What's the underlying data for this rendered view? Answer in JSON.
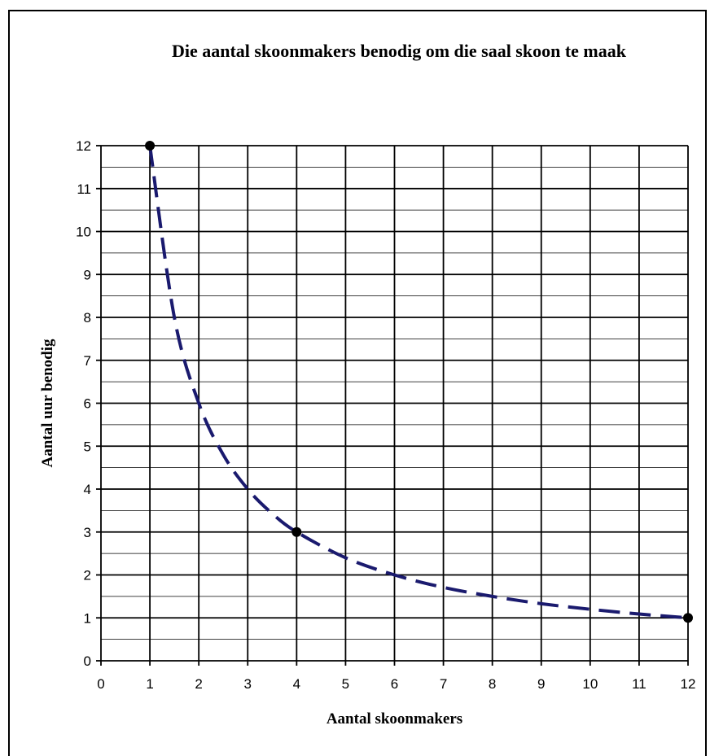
{
  "chart_data": {
    "type": "line",
    "title": "Die aantal skoonmakers benodig om die saal skoon te maak",
    "xlabel": "Aantal skoonmakers",
    "ylabel": "Aantal uur benodig",
    "xlim": [
      0,
      12
    ],
    "ylim": [
      0,
      12
    ],
    "x_ticks": [
      0,
      1,
      2,
      3,
      4,
      5,
      6,
      7,
      8,
      9,
      10,
      11,
      12
    ],
    "y_ticks": [
      0,
      1,
      2,
      3,
      4,
      5,
      6,
      7,
      8,
      9,
      10,
      11,
      12
    ],
    "grid": true,
    "curve": {
      "style": "dashed",
      "color": "#1a1a6e",
      "x": [
        1,
        1.5,
        2,
        2.5,
        3,
        3.5,
        4,
        5,
        6,
        7,
        8,
        9,
        10,
        11,
        12
      ],
      "y": [
        12,
        8,
        6,
        4.8,
        4,
        3.43,
        3,
        2.4,
        2,
        1.71,
        1.5,
        1.33,
        1.2,
        1.09,
        1
      ]
    },
    "points": {
      "color": "#000000",
      "x": [
        1,
        4,
        12
      ],
      "y": [
        12,
        3,
        1
      ]
    }
  }
}
